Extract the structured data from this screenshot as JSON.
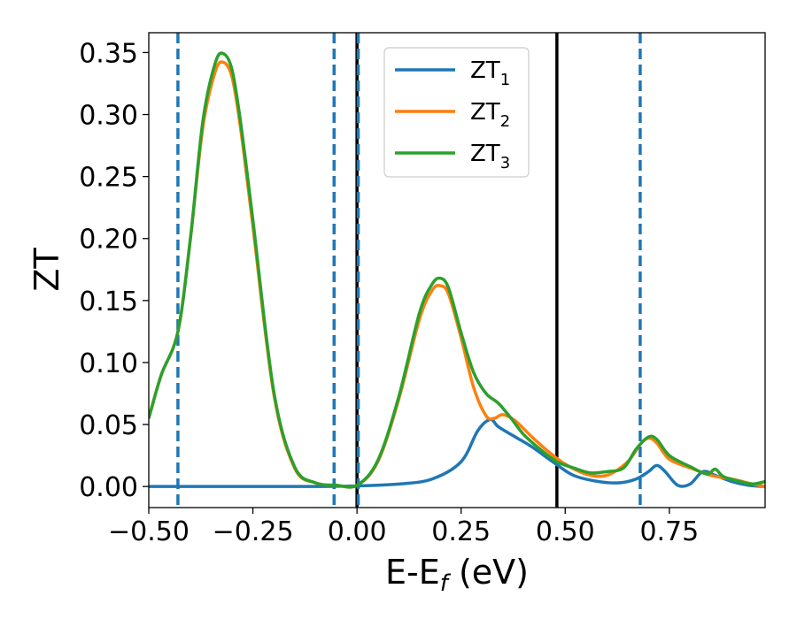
{
  "chart_data": {
    "type": "line",
    "title": "",
    "xlabel": {
      "main": "E-E",
      "sub": "f",
      "unit": " (eV)"
    },
    "ylabel": "ZT",
    "xlim": [
      -0.5,
      0.98
    ],
    "ylim": [
      -0.017,
      0.366
    ],
    "xticks": [
      -0.5,
      -0.25,
      0.0,
      0.25,
      0.5,
      0.75
    ],
    "xtick_labels": [
      "−0.50",
      "−0.25",
      "0.00",
      "0.25",
      "0.50",
      "0.75"
    ],
    "yticks": [
      0.0,
      0.05,
      0.1,
      0.15,
      0.2,
      0.25,
      0.3,
      0.35
    ],
    "ytick_labels": [
      "0.00",
      "0.05",
      "0.10",
      "0.15",
      "0.20",
      "0.25",
      "0.30",
      "0.35"
    ],
    "grid": false,
    "legend_position": "top-center",
    "vlines": [
      {
        "x": -0.43,
        "style": "dashed",
        "color": "#1f77b4"
      },
      {
        "x": -0.055,
        "style": "dashed",
        "color": "#1f77b4"
      },
      {
        "x": 0.0,
        "style": "solid",
        "color": "#000000"
      },
      {
        "x": 0.003,
        "style": "dashed",
        "color": "#1f77b4"
      },
      {
        "x": 0.48,
        "style": "solid",
        "color": "#000000"
      },
      {
        "x": 0.68,
        "style": "dashed",
        "color": "#1f77b4"
      }
    ],
    "series": [
      {
        "name": "ZT",
        "sub": "1",
        "color": "#1f77b4",
        "x": [
          -0.5,
          -0.3,
          -0.1,
          0.0,
          0.1,
          0.18,
          0.25,
          0.29,
          0.32,
          0.34,
          0.38,
          0.42,
          0.47,
          0.52,
          0.58,
          0.63,
          0.67,
          0.7,
          0.72,
          0.74,
          0.77,
          0.8,
          0.83,
          0.86,
          0.9,
          0.94,
          0.98
        ],
        "y": [
          0.0,
          0.0,
          0.0,
          0.0005,
          0.002,
          0.006,
          0.02,
          0.045,
          0.054,
          0.048,
          0.04,
          0.032,
          0.02,
          0.009,
          0.004,
          0.003,
          0.006,
          0.012,
          0.017,
          0.012,
          0.001,
          0.002,
          0.012,
          0.009,
          0.004,
          0.001,
          0.0
        ]
      },
      {
        "name": "ZT",
        "sub": "2",
        "color": "#ff7f0e",
        "x": [
          -0.5,
          -0.47,
          -0.43,
          -0.4,
          -0.37,
          -0.34,
          -0.32,
          -0.3,
          -0.28,
          -0.25,
          -0.2,
          -0.15,
          -0.1,
          -0.05,
          0.0,
          0.05,
          0.1,
          0.15,
          0.18,
          0.2,
          0.22,
          0.25,
          0.28,
          0.31,
          0.33,
          0.35,
          0.38,
          0.42,
          0.46,
          0.5,
          0.55,
          0.6,
          0.65,
          0.68,
          0.7,
          0.72,
          0.75,
          0.8,
          0.85,
          0.9,
          0.95,
          0.98
        ],
        "y": [
          0.055,
          0.09,
          0.125,
          0.2,
          0.29,
          0.335,
          0.342,
          0.33,
          0.29,
          0.21,
          0.075,
          0.015,
          0.003,
          0.001,
          0.001,
          0.02,
          0.07,
          0.135,
          0.158,
          0.162,
          0.155,
          0.12,
          0.08,
          0.057,
          0.055,
          0.058,
          0.053,
          0.04,
          0.028,
          0.018,
          0.01,
          0.009,
          0.02,
          0.034,
          0.039,
          0.035,
          0.022,
          0.015,
          0.009,
          0.006,
          0.002,
          0.0
        ]
      },
      {
        "name": "ZT",
        "sub": "3",
        "color": "#2ca02c",
        "x": [
          -0.5,
          -0.47,
          -0.43,
          -0.4,
          -0.37,
          -0.34,
          -0.32,
          -0.3,
          -0.28,
          -0.25,
          -0.2,
          -0.15,
          -0.1,
          -0.05,
          0.0,
          0.05,
          0.1,
          0.15,
          0.18,
          0.2,
          0.22,
          0.25,
          0.28,
          0.31,
          0.34,
          0.37,
          0.4,
          0.44,
          0.48,
          0.52,
          0.56,
          0.6,
          0.64,
          0.67,
          0.7,
          0.72,
          0.75,
          0.8,
          0.84,
          0.86,
          0.88,
          0.92,
          0.95,
          0.98
        ],
        "y": [
          0.055,
          0.09,
          0.125,
          0.2,
          0.295,
          0.342,
          0.349,
          0.336,
          0.295,
          0.215,
          0.077,
          0.016,
          0.003,
          0.001,
          0.001,
          0.021,
          0.072,
          0.14,
          0.163,
          0.168,
          0.16,
          0.124,
          0.092,
          0.075,
          0.067,
          0.055,
          0.042,
          0.03,
          0.02,
          0.015,
          0.011,
          0.012,
          0.015,
          0.03,
          0.04,
          0.038,
          0.025,
          0.016,
          0.01,
          0.014,
          0.008,
          0.004,
          0.002,
          0.004
        ]
      }
    ]
  }
}
